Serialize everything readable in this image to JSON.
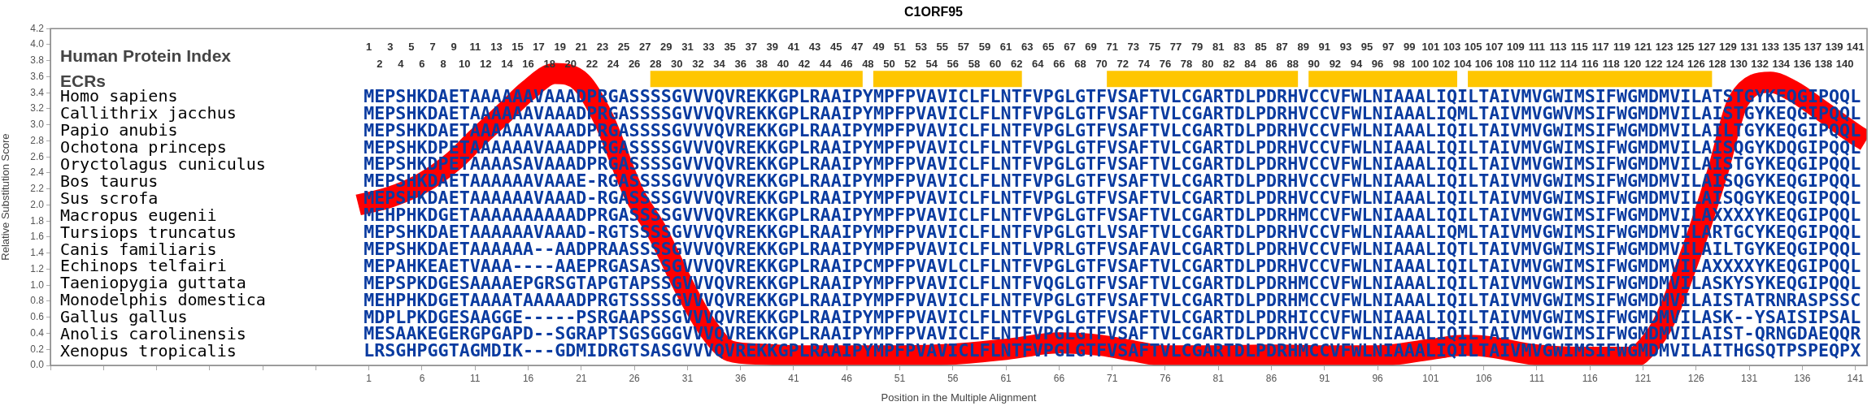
{
  "chart_data": {
    "type": "line",
    "title": "C1ORF95",
    "xlabel": "Position in the Multiple Alignment",
    "ylabel": "Relative Substitution Score",
    "series": [
      {
        "color": "#ff0000",
        "x": [
          0,
          3,
          6,
          9,
          11,
          14,
          16,
          18.5,
          21,
          23,
          26,
          28,
          31,
          33,
          35,
          38,
          41,
          46,
          51,
          56,
          61,
          66,
          70,
          73,
          76,
          81,
          86,
          91,
          96,
          101,
          104,
          106,
          111,
          116,
          120,
          121.5,
          123,
          126,
          128,
          130,
          133,
          135,
          138,
          141,
          142
        ],
        "values": [
          2.0,
          2.1,
          2.27,
          2.55,
          2.81,
          3.18,
          3.43,
          3.64,
          3.53,
          3.1,
          2.13,
          1.7,
          0.9,
          0.45,
          0.18,
          0.14,
          0.12,
          0.12,
          0.12,
          0.14,
          0.2,
          0.28,
          0.25,
          0.18,
          0.12,
          0.12,
          0.13,
          0.12,
          0.12,
          0.2,
          0.25,
          0.24,
          0.13,
          0.1,
          0.1,
          0.25,
          0.55,
          1.58,
          2.4,
          3.3,
          3.53,
          3.43,
          3.16,
          2.88,
          2.8
        ]
      }
    ],
    "marker": "none",
    "line_style": "solid",
    "grid": false,
    "xlim": [
      -29,
      142.1
    ],
    "xticks": [
      {
        "value": -29,
        "label": null
      },
      {
        "value": -24,
        "label": null
      },
      {
        "value": -19,
        "label": null
      },
      {
        "value": -14,
        "label": null
      },
      {
        "value": -9,
        "label": null
      },
      {
        "value": -4,
        "label": null
      },
      1,
      6,
      11,
      16,
      21,
      26,
      31,
      36,
      41,
      46,
      51,
      56,
      61,
      66,
      71,
      76,
      81,
      86,
      91,
      96,
      101,
      106,
      111,
      116,
      121,
      126,
      131,
      136,
      141
    ],
    "x2lim": [
      -29,
      142.1
    ],
    "x2ticks": [
      1,
      3,
      5,
      7,
      9,
      11,
      13,
      15,
      17,
      19,
      21,
      23,
      25,
      27,
      29,
      31,
      33,
      35,
      37,
      39,
      41,
      43,
      45,
      47,
      49,
      51,
      53,
      55,
      57,
      59,
      61,
      63,
      65,
      67,
      69,
      71,
      73,
      75,
      77,
      79,
      81,
      83,
      85,
      87,
      89,
      91,
      93,
      95,
      97,
      99,
      101,
      103,
      105,
      107,
      109,
      111,
      113,
      115,
      117,
      119,
      121,
      123,
      125,
      127,
      129,
      131,
      133,
      135,
      137,
      139,
      141
    ],
    "ylim": [
      0,
      4.2
    ],
    "yticks": [
      {
        "value": 0,
        "label": "0.0"
      },
      0.2,
      0.4,
      0.6,
      0.8,
      {
        "value": 1,
        "label": "1.0"
      },
      1.2,
      1.4,
      1.6,
      1.8,
      {
        "value": 2,
        "label": "2.0"
      },
      2.2,
      2.4,
      2.6,
      2.8,
      {
        "value": 3,
        "label": "3.0"
      },
      3.2,
      3.4,
      3.6,
      3.8,
      {
        "value": 4,
        "label": "4.0"
      },
      4.2
    ],
    "bands": [
      {
        "axis": "x",
        "from": 27.5,
        "to": 47.5,
        "color": "#ffc600"
      },
      {
        "axis": "x",
        "from": 48.5,
        "to": 62.5,
        "color": "#ffc600"
      },
      {
        "axis": "x",
        "from": 70.5,
        "to": 88.5,
        "color": "#ffc600"
      },
      {
        "axis": "x",
        "from": 89.5,
        "to": 103.5,
        "color": "#ffc600"
      },
      {
        "axis": "x",
        "from": 104.5,
        "to": 127.5,
        "color": "#ffc600"
      }
    ],
    "annotations": [
      "Human Protein Index",
      "ECRs",
      "2 4 6 8 10 12 14 16 18 20 22 24 26 28 30 32 34 36 38 40 42 44 46 48 50 52 54 56 58 60 62 64 66 68 70 72 74 76 78 80 82 84 86 88 90 92 94 96 98 100 102 104 106 108 110 112 114 116 118 120 122 124 126 128 130 132 134 136 138 140",
      "Homo sapiens",
      "Callithrix jacchus",
      "Papio anubis",
      "Ochotona princeps",
      "Oryctolagus cuniculus",
      "Bos taurus",
      "Sus scrofa",
      "Macropus eugenii",
      "Tursiops truncatus",
      "Canis familiaris",
      "Echinops telfairi",
      "Taeniopygia guttata",
      "Monodelphis domestica",
      "Gallus gallus",
      "Anolis carolinensis",
      "Xenopus tropicalis",
      "MEPSHKDAETAAAAAAVAAADPRGASSSSGVVVQVREKKGPLRAAIPYMPFPVAVICLFLNTFVPGLGTFVSAFTVLCGARTDLPDRHVCCVFWLNIAAALIQILTAIVMVGWIMSIFWGMDMVILATSTGYKEQGIPQQL",
      "MEPSHKDAETAAAAAAVAAADPRGASSSSGVVVQVREKKGPLRAAIPYMPFPVAVICLFLNTFVPGLGTFVSAFTVLCGARTDLPDRHVCCVFWLNIAAALIQMLTAIVMVGWVMSIFWGMDMVILAISTGYKEQGIPQQL",
      "MEPSHKDAETAAAAAAVAAADPRGASSSSGVVVQVREKKGPLRAAIPYMPFPVAVICLFLNTFVPGLGTFVSAFTVLCGARTDLPDRHVCCVFWLNIAAALIQILTAIVMVGWIMSIFWGMDMVILAILTGYKEQGIPQQL",
      "MEPSHKDPETAAAAAAVAAADPRGASSSSGVVVQVREKKGPLRAAIPYMPFPVAVICLFLNTFVPGLGTFVSAFTVLCGARTDLPDRHVCCVFWLNIAAALIQILTAIVMVGWIMSIFWGMDMVILAISQGYKDQGIPQQL",
      "MEPSHKDPETAAAASAVAAADPRGASSSSGVVVQVREKKGPLRAAIPYMPFPVAVICLFLNTFVPGLGTFVSAFTVLCGARTDLPDRHVCCVFWLNIAAALIQILTAIVMVGWIMSIFWGMDMVILAISTGYKEQGIPQQL",
      "MEPSHKDAETAAAAAAVAAAE-RGASSSSGVVVQVREKKGPLRAAIPYMPFPVAVICLFLNTFVPGLGTFVSAFTVLCGARTDLPDRHVCCVFWLNIAAALIQILTAIVMVGWIMSIFWGMDMVILAISQGYKEQGIPQQL",
      "MEPSHKDAETAAAAAAVAAAD-RGASSSSGVVVQVREKKGPLRAAIPYMPFPVAVICLFLNTFVPGLGTFVSAFTVLCGARTDLPDRHVCCVFWLNIAAALIQILTAIVMVGWIMSIFWGMDMVILAISQGYKEQGIPQQL",
      "MEHPHKDGETAAAAAAAAAADPRGASSSSGVVVQVREKKGPLRAAIPYMPFPVAVICLFLNTFVPGLGTFVSAFTVLCGARTDLPDRHMCCVFWLNIAAALIQILTAIVMVGWIMSIFWGMDMVILAXXXXYKEQGIPQQL",
      "MEPSHKDAETAAAAAAVAAAD-RGTSSSSGVVVQVREKKGPLRAAIPYMPFPVAVICLFLNTFVPGLGTLVSAFTVLCGARTDLPDRHVCCVFWLNIAAALIQMLTAIVMVGWIMSIFWGMDMVILARTGCYKEQGIPQQL",
      "MEPSHKDAETAAAAAA--AADPRAASSSSGVVVQVREKKGPLRAAIPYMPFPVAVICLFLNTLVPRLGTFVSAFAVLCGARTDLPDRHVCCVFWLNIAAALIQTLTAIVMVGWIMSIFWGMDMVILAILTGYKEQGIPQQL",
      "MEPAHKEAETVAAA----AAEPRGASASSGVVVQVREKKGPLRAAIPCMPFPVAVLCLFLNTFVPGLGTFVSAFTVLCGARTDLPDRHVCCVFWLNIAAALIQILTAIVMVGWIMSIFWGMDMVILAXXXXYKEQGIPQQL",
      "MEPSPKDGESAAAAEPGRSGTAPGTAPSSGVVVQVREKKGPLRAAIPYMPFPVAVICLFLNTFVQGLGTFVSAFTVLCGARTDLPDRHMCCVFWLNIAAALIQILTAIVMVGWIMSIFWGMDMVILASKYSYKEQGIPQQL",
      "MEHPHKDGETAAAATAAAAADPRGTSSSSGVVVQVREKKGPLRAAIPYMPFPVAVICLFLNTFVPGLGTFVSAFTVLCGARTDLPDRHMCCVFWLNIAAALIQILTAIVMVGWIMSIFWGMDMVILAISTATRNRASPSSC",
      "MDPLPKDGESAAGGE-----PSRGAAPSSGVVVQVREKKGPLRAAIPYMPFPVAVICLFLNTFVPGLGTFVSAFTVLCGARTDLPDRHICCVFWLNIAAALIQILTAIVMVGWIMSIFWGMDMVILASK--YSAISIPSAL",
      "MESAAKEGERGPGAPD--SGRAPTSGSGGGVVVQVREKKGPLRAAIPYMPFPVAVICLFLNTFVPGLGTFVSAFTVLCGARTDLPDRHVCCVFWLNIAAALIQILTAIVMVGWIMSIFWGMDMVILAIST-QRNGDAEQQR",
      "LRSGHPGGTAGMDIK---GDMIDRGTSASGVVVQVREKKGPLRAAIPYMPFPVAVICLFLNTFVPGLGTFVSAFTVLCGARTDLPDRHMCCVFWLNIAAALIQILTAIVMVGWIMSIFWGMDMVILAITHGSQTPSPEQPX"
    ]
  }
}
